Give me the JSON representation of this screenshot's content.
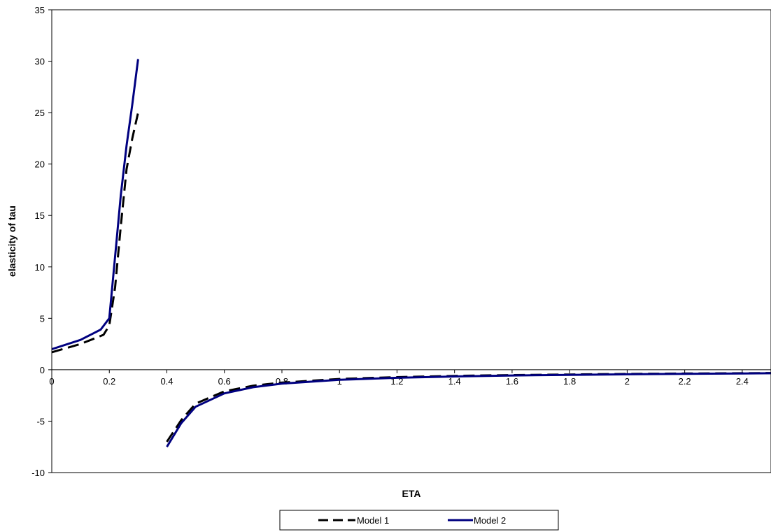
{
  "chart_data": {
    "type": "line",
    "title": "",
    "xlabel": "ETA",
    "ylabel": "elasticity of tau",
    "xlim": [
      0,
      2.5
    ],
    "ylim": [
      -10,
      35
    ],
    "x_ticks": [
      "0",
      "0.2",
      "0.4",
      "0.6",
      "0.8",
      "1",
      "1.2",
      "1.4",
      "1.6",
      "1.8",
      "2",
      "2.2",
      "2.4"
    ],
    "x_tick_values": [
      0,
      0.2,
      0.4,
      0.6,
      0.8,
      1,
      1.2,
      1.4,
      1.6,
      1.8,
      2,
      2.2,
      2.4
    ],
    "y_ticks": [
      "35",
      "30",
      "25",
      "20",
      "15",
      "10",
      "5",
      "0",
      "-5",
      "-10"
    ],
    "y_tick_values": [
      35,
      30,
      25,
      20,
      15,
      10,
      5,
      0,
      -5,
      -10
    ],
    "grid": false,
    "legend_position": "bottom",
    "series": [
      {
        "name": "Model 1",
        "color": "#000000",
        "style": "dashed",
        "segments": [
          [
            [
              0,
              1.7
            ],
            [
              0.1,
              2.5
            ],
            [
              0.18,
              3.4
            ],
            [
              0.2,
              4.3
            ],
            [
              0.22,
              8
            ],
            [
              0.24,
              14
            ],
            [
              0.26,
              19.5
            ],
            [
              0.28,
              22.5
            ],
            [
              0.3,
              25
            ]
          ],
          [
            [
              0.4,
              -7
            ],
            [
              0.45,
              -4.9
            ],
            [
              0.5,
              -3.3
            ],
            [
              0.6,
              -2.1
            ],
            [
              0.7,
              -1.55
            ],
            [
              0.8,
              -1.25
            ],
            [
              1.0,
              -0.9
            ],
            [
              1.2,
              -0.72
            ],
            [
              1.4,
              -0.6
            ],
            [
              1.6,
              -0.52
            ],
            [
              1.8,
              -0.46
            ],
            [
              2.0,
              -0.41
            ],
            [
              2.2,
              -0.37
            ],
            [
              2.4,
              -0.34
            ],
            [
              2.5,
              -0.32
            ]
          ]
        ]
      },
      {
        "name": "Model 2",
        "color": "#000080",
        "style": "solid",
        "segments": [
          [
            [
              0,
              2.0
            ],
            [
              0.1,
              2.9
            ],
            [
              0.17,
              3.9
            ],
            [
              0.2,
              5.0
            ],
            [
              0.22,
              11
            ],
            [
              0.24,
              17
            ],
            [
              0.26,
              21.8
            ],
            [
              0.28,
              25.8
            ],
            [
              0.3,
              30.2
            ]
          ],
          [
            [
              0.4,
              -7.5
            ],
            [
              0.45,
              -5.2
            ],
            [
              0.5,
              -3.6
            ],
            [
              0.6,
              -2.3
            ],
            [
              0.7,
              -1.7
            ],
            [
              0.8,
              -1.35
            ],
            [
              1.0,
              -0.98
            ],
            [
              1.2,
              -0.78
            ],
            [
              1.4,
              -0.65
            ],
            [
              1.6,
              -0.56
            ],
            [
              1.8,
              -0.5
            ],
            [
              2.0,
              -0.44
            ],
            [
              2.2,
              -0.4
            ],
            [
              2.4,
              -0.36
            ],
            [
              2.5,
              -0.34
            ]
          ]
        ]
      }
    ]
  }
}
